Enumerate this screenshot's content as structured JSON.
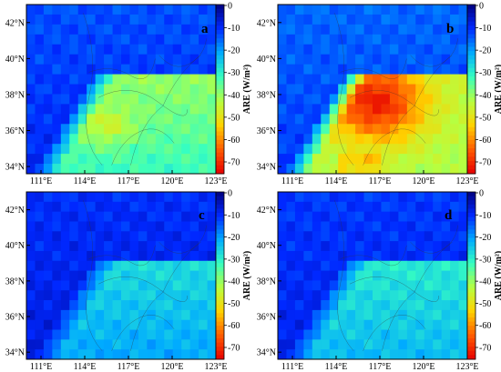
{
  "figure": {
    "panels": [
      {
        "label": "a",
        "field": "a"
      },
      {
        "label": "b",
        "field": "b"
      },
      {
        "label": "c",
        "field": "c"
      },
      {
        "label": "d",
        "field": "d"
      }
    ],
    "lat_ticks": [
      "42°N",
      "40°N",
      "38°N",
      "36°N",
      "34°N"
    ],
    "lon_ticks": [
      "111°E",
      "114°E",
      "117°E",
      "120°E",
      "123°E"
    ],
    "colorbar": {
      "label": "ARE (W/m²)",
      "ticks": [
        "0",
        "-10",
        "-20",
        "-30",
        "-40",
        "-50",
        "-60",
        "-70"
      ]
    }
  },
  "chart_data": {
    "type": "heatmap",
    "lon_range": [
      110,
      123
    ],
    "lat_range": [
      34,
      43
    ],
    "value_range": [
      -75,
      0
    ],
    "colorscale": [
      "#00007f",
      "#0028ff",
      "#00aaff",
      "#37ffc0",
      "#b6ff41",
      "#ffd200",
      "#ff5c00",
      "#e60000"
    ],
    "panel_summaries": [
      {
        "panel": "a",
        "min_ARE": -50,
        "region_mean_ARE": -38
      },
      {
        "panel": "b",
        "min_ARE": -68,
        "region_mean_ARE": -50
      },
      {
        "panel": "c",
        "min_ARE": -32,
        "region_mean_ARE": -25
      },
      {
        "panel": "d",
        "min_ARE": -33,
        "region_mean_ARE": -26
      }
    ]
  }
}
